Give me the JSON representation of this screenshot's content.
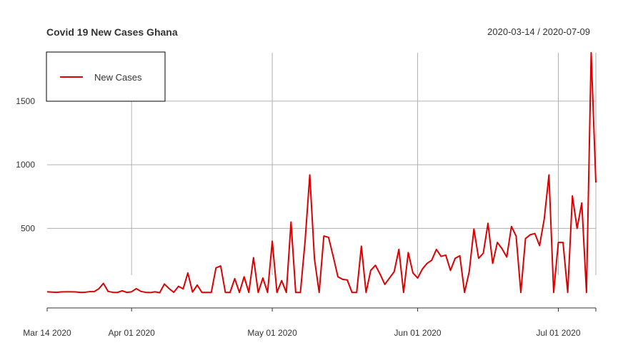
{
  "chart_data": {
    "type": "line",
    "title": "Covid 19 New Cases Ghana",
    "date_range_label": "2020-03-14 / 2020-07-09",
    "xlabel": "",
    "ylabel": "",
    "x_start": "2020-03-14",
    "x_end": "2020-07-09",
    "ylim": [
      -80,
      1880
    ],
    "y_ticks": [
      500,
      1000,
      1500
    ],
    "x_ticks": [
      {
        "date": "2020-03-14",
        "label": "Mar 14 2020"
      },
      {
        "date": "2020-04-01",
        "label": "Apr 01 2020"
      },
      {
        "date": "2020-05-01",
        "label": "May 01 2020"
      },
      {
        "date": "2020-06-01",
        "label": "Jun 01 2020"
      },
      {
        "date": "2020-07-01",
        "label": "Jul 01 2020"
      }
    ],
    "grid": true,
    "legend_position": "top-left",
    "series": [
      {
        "name": "New Cases",
        "color": "#dd0000",
        "values": [
          {
            "date": "2020-03-14",
            "value": 2
          },
          {
            "date": "2020-03-15",
            "value": 0
          },
          {
            "date": "2020-03-16",
            "value": -2
          },
          {
            "date": "2020-03-17",
            "value": 1
          },
          {
            "date": "2020-03-18",
            "value": 2
          },
          {
            "date": "2020-03-19",
            "value": 2
          },
          {
            "date": "2020-03-20",
            "value": 1
          },
          {
            "date": "2020-03-21",
            "value": -2
          },
          {
            "date": "2020-03-22",
            "value": -2
          },
          {
            "date": "2020-03-23",
            "value": 3
          },
          {
            "date": "2020-03-24",
            "value": 3
          },
          {
            "date": "2020-03-25",
            "value": 25
          },
          {
            "date": "2020-03-26",
            "value": 68
          },
          {
            "date": "2020-03-27",
            "value": 5
          },
          {
            "date": "2020-03-28",
            "value": -2
          },
          {
            "date": "2020-03-29",
            "value": -3
          },
          {
            "date": "2020-03-30",
            "value": 10
          },
          {
            "date": "2020-03-31",
            "value": -3
          },
          {
            "date": "2020-04-01",
            "value": 2
          },
          {
            "date": "2020-04-02",
            "value": 27
          },
          {
            "date": "2020-04-03",
            "value": 5
          },
          {
            "date": "2020-04-04",
            "value": -2
          },
          {
            "date": "2020-04-05",
            "value": -4
          },
          {
            "date": "2020-04-06",
            "value": 2
          },
          {
            "date": "2020-04-07",
            "value": -5
          },
          {
            "date": "2020-04-08",
            "value": 63
          },
          {
            "date": "2020-04-09",
            "value": 27
          },
          {
            "date": "2020-04-10",
            "value": -2
          },
          {
            "date": "2020-04-11",
            "value": 45
          },
          {
            "date": "2020-04-12",
            "value": 25
          },
          {
            "date": "2020-04-13",
            "value": 150
          },
          {
            "date": "2020-04-14",
            "value": 0
          },
          {
            "date": "2020-04-15",
            "value": 55
          },
          {
            "date": "2020-04-16",
            "value": -3
          },
          {
            "date": "2020-04-17",
            "value": -3
          },
          {
            "date": "2020-04-18",
            "value": -3
          },
          {
            "date": "2020-04-19",
            "value": 190
          },
          {
            "date": "2020-04-20",
            "value": 205
          },
          {
            "date": "2020-04-21",
            "value": -3
          },
          {
            "date": "2020-04-22",
            "value": -3
          },
          {
            "date": "2020-04-23",
            "value": 105
          },
          {
            "date": "2020-04-24",
            "value": -3
          },
          {
            "date": "2020-04-25",
            "value": 120
          },
          {
            "date": "2020-04-26",
            "value": -3
          },
          {
            "date": "2020-04-27",
            "value": 270
          },
          {
            "date": "2020-04-28",
            "value": -3
          },
          {
            "date": "2020-04-29",
            "value": 110
          },
          {
            "date": "2020-04-30",
            "value": -3
          },
          {
            "date": "2020-05-01",
            "value": 400
          },
          {
            "date": "2020-05-02",
            "value": -3
          },
          {
            "date": "2020-05-03",
            "value": 90
          },
          {
            "date": "2020-05-04",
            "value": -3
          },
          {
            "date": "2020-05-05",
            "value": 550
          },
          {
            "date": "2020-05-06",
            "value": -3
          },
          {
            "date": "2020-05-07",
            "value": -3
          },
          {
            "date": "2020-05-08",
            "value": 400
          },
          {
            "date": "2020-05-09",
            "value": 920
          },
          {
            "date": "2020-05-10",
            "value": 260
          },
          {
            "date": "2020-05-11",
            "value": -3
          },
          {
            "date": "2020-05-12",
            "value": 440
          },
          {
            "date": "2020-05-13",
            "value": 430
          },
          {
            "date": "2020-05-14",
            "value": 280
          },
          {
            "date": "2020-05-15",
            "value": 120
          },
          {
            "date": "2020-05-16",
            "value": 100
          },
          {
            "date": "2020-05-17",
            "value": 95
          },
          {
            "date": "2020-05-18",
            "value": -3
          },
          {
            "date": "2020-05-19",
            "value": -3
          },
          {
            "date": "2020-05-20",
            "value": 360
          },
          {
            "date": "2020-05-21",
            "value": -3
          },
          {
            "date": "2020-05-22",
            "value": 170
          },
          {
            "date": "2020-05-23",
            "value": 210
          },
          {
            "date": "2020-05-24",
            "value": 140
          },
          {
            "date": "2020-05-25",
            "value": 60
          },
          {
            "date": "2020-05-26",
            "value": 110
          },
          {
            "date": "2020-05-27",
            "value": 160
          },
          {
            "date": "2020-05-28",
            "value": 335
          },
          {
            "date": "2020-05-29",
            "value": -3
          },
          {
            "date": "2020-05-30",
            "value": 310
          },
          {
            "date": "2020-05-31",
            "value": 150
          },
          {
            "date": "2020-06-01",
            "value": 110
          },
          {
            "date": "2020-06-02",
            "value": 180
          },
          {
            "date": "2020-06-03",
            "value": 225
          },
          {
            "date": "2020-06-04",
            "value": 250
          },
          {
            "date": "2020-06-05",
            "value": 335
          },
          {
            "date": "2020-06-06",
            "value": 280
          },
          {
            "date": "2020-06-07",
            "value": 290
          },
          {
            "date": "2020-06-08",
            "value": 170
          },
          {
            "date": "2020-06-09",
            "value": 265
          },
          {
            "date": "2020-06-10",
            "value": 285
          },
          {
            "date": "2020-06-11",
            "value": -3
          },
          {
            "date": "2020-06-12",
            "value": 160
          },
          {
            "date": "2020-06-13",
            "value": 495
          },
          {
            "date": "2020-06-14",
            "value": 265
          },
          {
            "date": "2020-06-15",
            "value": 305
          },
          {
            "date": "2020-06-16",
            "value": 540
          },
          {
            "date": "2020-06-17",
            "value": 225
          },
          {
            "date": "2020-06-18",
            "value": 390
          },
          {
            "date": "2020-06-19",
            "value": 340
          },
          {
            "date": "2020-06-20",
            "value": 275
          },
          {
            "date": "2020-06-21",
            "value": 515
          },
          {
            "date": "2020-06-22",
            "value": 440
          },
          {
            "date": "2020-06-23",
            "value": -3
          },
          {
            "date": "2020-06-24",
            "value": 420
          },
          {
            "date": "2020-06-25",
            "value": 450
          },
          {
            "date": "2020-06-26",
            "value": 460
          },
          {
            "date": "2020-06-27",
            "value": 365
          },
          {
            "date": "2020-06-28",
            "value": 575
          },
          {
            "date": "2020-06-29",
            "value": 920
          },
          {
            "date": "2020-06-30",
            "value": -3
          },
          {
            "date": "2020-07-01",
            "value": 390
          },
          {
            "date": "2020-07-02",
            "value": 390
          },
          {
            "date": "2020-07-03",
            "value": -3
          },
          {
            "date": "2020-07-04",
            "value": 755
          },
          {
            "date": "2020-07-05",
            "value": 500
          },
          {
            "date": "2020-07-06",
            "value": 700
          },
          {
            "date": "2020-07-07",
            "value": -3
          },
          {
            "date": "2020-07-08",
            "value": 1880
          },
          {
            "date": "2020-07-09",
            "value": 860
          }
        ]
      }
    ]
  }
}
